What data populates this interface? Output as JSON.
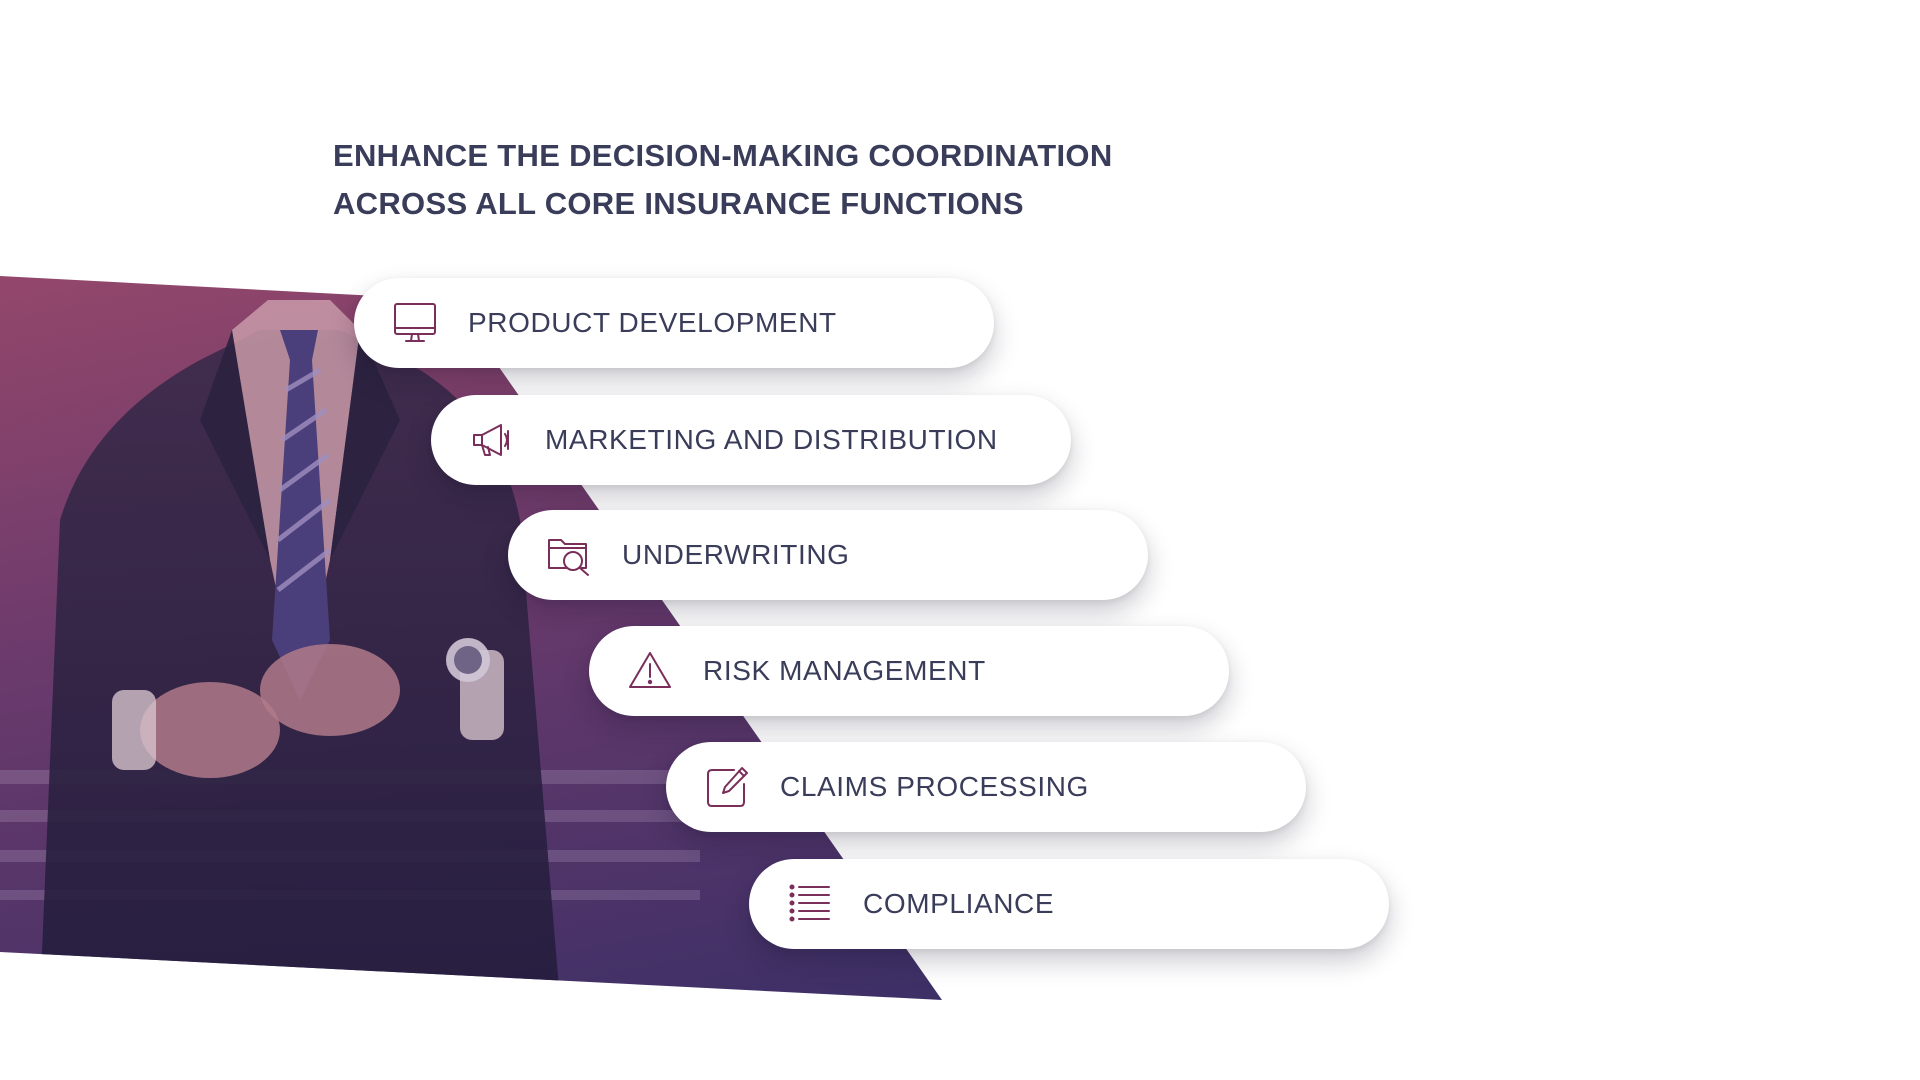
{
  "headline": {
    "line1": "ENHANCE THE DECISION-MAKING COORDINATION",
    "line2": "ACROSS ALL CORE INSURANCE FUNCTIONS"
  },
  "colors": {
    "text": "#3a3d5a",
    "icon": "#7a2e5a",
    "overlay_top": "#b0506a",
    "overlay_bottom": "#3a2f66"
  },
  "functions": [
    {
      "label": "PRODUCT DEVELOPMENT",
      "icon": "monitor-icon"
    },
    {
      "label": "MARKETING AND DISTRIBUTION",
      "icon": "megaphone-icon"
    },
    {
      "label": "UNDERWRITING",
      "icon": "folder-search-icon"
    },
    {
      "label": "RISK MANAGEMENT",
      "icon": "warning-icon"
    },
    {
      "label": "CLAIMS PROCESSING",
      "icon": "edit-document-icon"
    },
    {
      "label": "COMPLIANCE",
      "icon": "list-icon"
    }
  ]
}
